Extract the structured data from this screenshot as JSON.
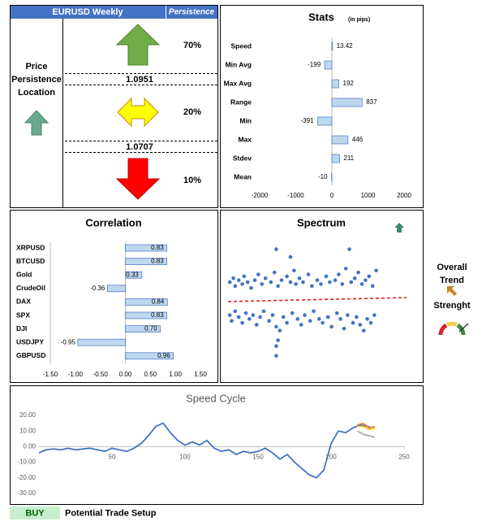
{
  "persistence": {
    "pair": "EURUSD Weekly",
    "header": "Persistence",
    "location_label": "Price Persistence Location",
    "up_pct": "70%",
    "upper_price": "1.0951",
    "mid_pct": "20%",
    "lower_price": "1.0707",
    "down_pct": "10%"
  },
  "trend": {
    "label": "Overall Trend",
    "strength_label": "Strenght"
  },
  "setup": {
    "signal": "BUY",
    "label": "Potential Trade Setup"
  },
  "chart_data": [
    {
      "type": "hbar",
      "title": "Stats",
      "subtitle": "(in pips)",
      "categories": [
        "Speed",
        "Min Avg",
        "Max Avg",
        "Range",
        "Min",
        "Max",
        "Stdev",
        "Mean"
      ],
      "values": [
        13.42,
        -199,
        192,
        837,
        -391,
        446,
        211,
        -10
      ],
      "color": "#bdd7ee",
      "xlim": [
        -2000,
        2000
      ],
      "xticks": [
        -2000,
        -1000,
        0,
        1000,
        2000
      ]
    },
    {
      "type": "hbar",
      "title": "Correlation",
      "categories": [
        "XRPUSD",
        "BTCUSD",
        "Gold",
        "CrudeOil",
        "DAX",
        "SPX",
        "DJI",
        "USDJPY",
        "GBPUSD"
      ],
      "values": [
        0.83,
        0.83,
        0.33,
        -0.36,
        0.84,
        0.83,
        0.7,
        -0.95,
        0.96
      ],
      "value_labels": [
        "0.83",
        "0.83",
        "0.33",
        "-0.36",
        "0.84",
        "0.83",
        "0.70",
        "-0.95",
        "0.96"
      ],
      "color": "#bdd7ee",
      "xlim": [
        -1.5,
        1.5
      ],
      "xticks": [
        {
          "value": -1.5,
          "label": "-1.50"
        },
        {
          "value": -1,
          "label": "-1.00"
        },
        {
          "value": -0.5,
          "label": "-0.50"
        },
        {
          "value": 0,
          "label": "0.00"
        },
        {
          "value": 0.5,
          "label": "0.50"
        },
        {
          "value": 1,
          "label": "1.00"
        },
        {
          "value": 1.5,
          "label": "1.50"
        }
      ]
    },
    {
      "type": "scatter",
      "title": "Spectrum",
      "color": "#4472c4",
      "xlim": [
        0,
        100
      ],
      "ylim": [
        -3,
        3
      ],
      "x": [
        1,
        3,
        4,
        6,
        8,
        9,
        11,
        13,
        15,
        17,
        19,
        21,
        24,
        26,
        28,
        30,
        33,
        35,
        37,
        38,
        40,
        42,
        45,
        47,
        50,
        52,
        55,
        57,
        60,
        62,
        64,
        66,
        69,
        71,
        73,
        75,
        77,
        79,
        81,
        83,
        68,
        27,
        35,
        1,
        2,
        4,
        6,
        8,
        10,
        12,
        14,
        16,
        18,
        20,
        23,
        25,
        27,
        29,
        31,
        33,
        36,
        39,
        41,
        43,
        46,
        48,
        51,
        53,
        56,
        58,
        61,
        63,
        65,
        67,
        70,
        72,
        74,
        76,
        78,
        80,
        82,
        27,
        27,
        28
      ],
      "y": [
        0.9,
        1.1,
        0.7,
        1.0,
        0.8,
        1.2,
        0.9,
        0.6,
        1.0,
        1.3,
        0.8,
        1.1,
        0.9,
        1.4,
        0.7,
        1.0,
        1.2,
        0.9,
        1.5,
        0.8,
        1.1,
        0.9,
        1.3,
        0.7,
        1.0,
        0.8,
        1.2,
        0.9,
        1.0,
        1.3,
        0.8,
        1.6,
        0.9,
        1.1,
        1.4,
        0.8,
        1.0,
        1.2,
        0.7,
        1.5,
        2.6,
        2.6,
        2.2,
        -0.8,
        -1.1,
        -0.6,
        -0.9,
        -1.2,
        -0.7,
        -1.0,
        -0.8,
        -1.3,
        -0.9,
        -0.6,
        -1.1,
        -0.8,
        -1.4,
        -1.6,
        -0.9,
        -1.2,
        -0.7,
        -1.0,
        -1.3,
        -0.8,
        -1.1,
        -0.6,
        -1.0,
        -1.2,
        -0.9,
        -1.4,
        -0.7,
        -1.0,
        -1.5,
        -0.8,
        -1.2,
        -0.9,
        -1.3,
        -1.6,
        -1.0,
        -1.2,
        -0.8,
        -2.4,
        -2.9,
        -2.1
      ],
      "trendline": {
        "color": "#e02020",
        "x": [
          0,
          100
        ],
        "y": [
          -0.1,
          0.1
        ]
      }
    },
    {
      "type": "line",
      "title": "Speed Cycle",
      "xlim": [
        0,
        250
      ],
      "xticks": [
        50,
        100,
        150,
        200,
        250
      ],
      "ylim": [
        -30,
        20
      ],
      "yticks": [
        {
          "value": 20,
          "label": "20.00"
        },
        {
          "value": 10,
          "label": "10.00"
        },
        {
          "value": 0,
          "label": "0.00"
        },
        {
          "value": -10,
          "label": "-10.00"
        },
        {
          "value": -20,
          "label": "-20.00"
        },
        {
          "value": -30,
          "label": "-30.00"
        }
      ],
      "series": [
        {
          "color": "#4472c4",
          "x": [
            0,
            5,
            10,
            15,
            20,
            25,
            30,
            35,
            40,
            45,
            50,
            55,
            60,
            65,
            70,
            75,
            80,
            85,
            90,
            95,
            100,
            105,
            110,
            115,
            120,
            125,
            130,
            135,
            140,
            145,
            150,
            155,
            160,
            165,
            170,
            175,
            180,
            185,
            190,
            195,
            200,
            205,
            210,
            215,
            220,
            225,
            228
          ],
          "values": [
            -4,
            -2,
            -1.5,
            -2,
            -1,
            -2,
            -1.5,
            -1,
            -2,
            -3,
            -1,
            -2,
            -3,
            -1,
            2,
            7,
            13,
            15,
            9,
            4,
            1,
            3,
            1,
            4,
            -1,
            -3,
            -2,
            -5,
            -3,
            -4,
            -3,
            -1,
            -4,
            -8,
            -5,
            -10,
            -14,
            -18,
            -20,
            -15,
            2,
            10,
            9,
            12,
            14,
            13,
            12
          ]
        },
        {
          "color": "#ed7d31",
          "x": [
            218,
            222,
            226,
            230
          ],
          "values": [
            14,
            15,
            12,
            13
          ]
        },
        {
          "color": "#ffc000",
          "x": [
            218,
            222,
            226,
            230
          ],
          "values": [
            13,
            13,
            11,
            12
          ]
        },
        {
          "color": "#a5a5a5",
          "x": [
            218,
            222,
            226,
            230
          ],
          "values": [
            10,
            8,
            7,
            6
          ]
        }
      ]
    }
  ]
}
